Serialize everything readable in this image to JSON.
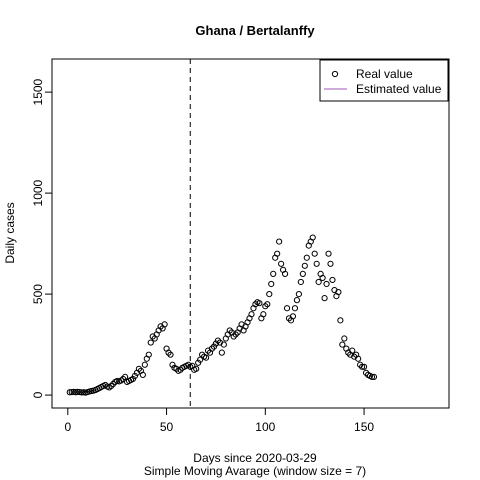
{
  "chart_data": {
    "type": "scatter",
    "title": "Ghana / Bertalanffy",
    "xlabel": "Days since 2020-03-29",
    "xlabel2": "Simple Moving Avarage (window size = 7)",
    "ylabel": "Daily cases",
    "xlim": [
      -8,
      193
    ],
    "ylim": [
      -64,
      1664
    ],
    "x_ticks": [
      0,
      50,
      100,
      150
    ],
    "y_ticks": [
      0,
      500,
      1000,
      1500
    ],
    "vline_x": 62,
    "legend": {
      "position": "top-right",
      "entries": [
        {
          "label": "Real value",
          "marker": "circle"
        },
        {
          "label": "Estimated value",
          "marker": "line",
          "color": "#9b59b6"
        }
      ]
    },
    "series": [
      {
        "name": "Real value",
        "points": [
          [
            1,
            14
          ],
          [
            2,
            15
          ],
          [
            3,
            16
          ],
          [
            4,
            14
          ],
          [
            5,
            16
          ],
          [
            6,
            15
          ],
          [
            7,
            13
          ],
          [
            8,
            14
          ],
          [
            9,
            12
          ],
          [
            10,
            15
          ],
          [
            11,
            18
          ],
          [
            12,
            20
          ],
          [
            13,
            22
          ],
          [
            14,
            25
          ],
          [
            15,
            30
          ],
          [
            16,
            35
          ],
          [
            17,
            40
          ],
          [
            18,
            45
          ],
          [
            19,
            50
          ],
          [
            20,
            42
          ],
          [
            21,
            38
          ],
          [
            22,
            45
          ],
          [
            23,
            55
          ],
          [
            24,
            65
          ],
          [
            25,
            70
          ],
          [
            26,
            68
          ],
          [
            27,
            72
          ],
          [
            28,
            80
          ],
          [
            29,
            90
          ],
          [
            30,
            65
          ],
          [
            31,
            70
          ],
          [
            32,
            75
          ],
          [
            33,
            80
          ],
          [
            34,
            95
          ],
          [
            35,
            110
          ],
          [
            36,
            130
          ],
          [
            37,
            120
          ],
          [
            38,
            100
          ],
          [
            39,
            150
          ],
          [
            40,
            180
          ],
          [
            41,
            200
          ],
          [
            42,
            260
          ],
          [
            43,
            290
          ],
          [
            44,
            280
          ],
          [
            45,
            300
          ],
          [
            46,
            320
          ],
          [
            47,
            340
          ],
          [
            48,
            330
          ],
          [
            49,
            350
          ],
          [
            50,
            230
          ],
          [
            51,
            210
          ],
          [
            52,
            200
          ],
          [
            53,
            150
          ],
          [
            54,
            135
          ],
          [
            55,
            130
          ],
          [
            56,
            120
          ],
          [
            57,
            125
          ],
          [
            58,
            135
          ],
          [
            59,
            140
          ],
          [
            60,
            145
          ],
          [
            61,
            150
          ],
          [
            62,
            140
          ],
          [
            63,
            145
          ],
          [
            64,
            125
          ],
          [
            65,
            130
          ],
          [
            66,
            160
          ],
          [
            67,
            175
          ],
          [
            68,
            200
          ],
          [
            69,
            190
          ],
          [
            70,
            185
          ],
          [
            71,
            220
          ],
          [
            72,
            210
          ],
          [
            73,
            230
          ],
          [
            74,
            240
          ],
          [
            75,
            255
          ],
          [
            76,
            270
          ],
          [
            77,
            260
          ],
          [
            78,
            210
          ],
          [
            79,
            250
          ],
          [
            80,
            280
          ],
          [
            81,
            300
          ],
          [
            82,
            320
          ],
          [
            83,
            310
          ],
          [
            84,
            290
          ],
          [
            85,
            300
          ],
          [
            86,
            310
          ],
          [
            87,
            330
          ],
          [
            88,
            350
          ],
          [
            89,
            320
          ],
          [
            90,
            340
          ],
          [
            91,
            360
          ],
          [
            92,
            380
          ],
          [
            93,
            400
          ],
          [
            94,
            430
          ],
          [
            95,
            450
          ],
          [
            96,
            460
          ],
          [
            97,
            455
          ],
          [
            98,
            380
          ],
          [
            99,
            400
          ],
          [
            100,
            440
          ],
          [
            101,
            450
          ],
          [
            102,
            500
          ],
          [
            103,
            550
          ],
          [
            104,
            600
          ],
          [
            105,
            680
          ],
          [
            106,
            700
          ],
          [
            107,
            760
          ],
          [
            108,
            650
          ],
          [
            109,
            620
          ],
          [
            110,
            600
          ],
          [
            111,
            430
          ],
          [
            112,
            380
          ],
          [
            113,
            370
          ],
          [
            114,
            390
          ],
          [
            115,
            430
          ],
          [
            116,
            470
          ],
          [
            117,
            500
          ],
          [
            118,
            560
          ],
          [
            119,
            600
          ],
          [
            120,
            640
          ],
          [
            121,
            680
          ],
          [
            122,
            740
          ],
          [
            123,
            760
          ],
          [
            124,
            780
          ],
          [
            125,
            700
          ],
          [
            126,
            650
          ],
          [
            127,
            560
          ],
          [
            128,
            600
          ],
          [
            129,
            580
          ],
          [
            130,
            480
          ],
          [
            131,
            550
          ],
          [
            132,
            700
          ],
          [
            133,
            650
          ],
          [
            134,
            570
          ],
          [
            135,
            520
          ],
          [
            136,
            490
          ],
          [
            137,
            510
          ],
          [
            138,
            370
          ],
          [
            139,
            250
          ],
          [
            140,
            280
          ],
          [
            141,
            230
          ],
          [
            142,
            210
          ],
          [
            143,
            200
          ],
          [
            144,
            220
          ],
          [
            145,
            190
          ],
          [
            146,
            200
          ],
          [
            147,
            180
          ],
          [
            148,
            150
          ],
          [
            149,
            140
          ],
          [
            150,
            140
          ],
          [
            151,
            110
          ],
          [
            152,
            100
          ],
          [
            153,
            95
          ],
          [
            154,
            90
          ],
          [
            155,
            90
          ]
        ]
      }
    ]
  }
}
